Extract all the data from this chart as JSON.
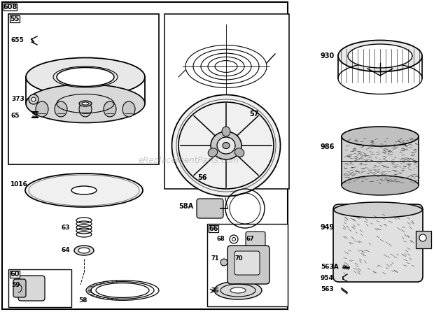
{
  "bg_color": "#ffffff",
  "watermark": "eReplacementParts.com"
}
